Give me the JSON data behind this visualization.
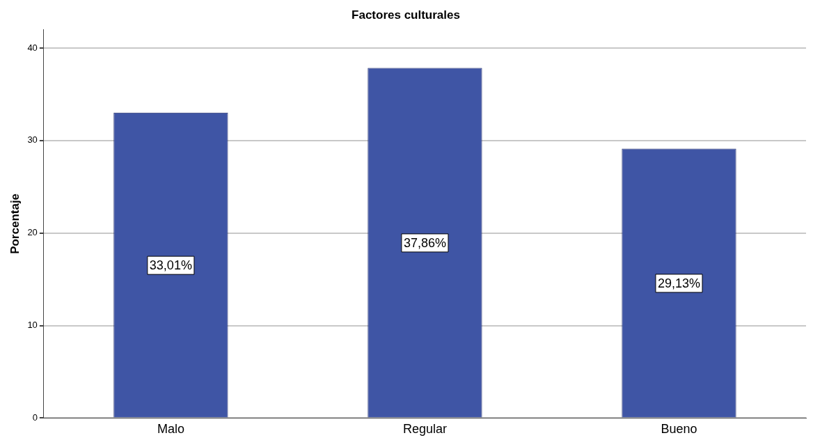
{
  "chart_data": {
    "type": "bar",
    "title": "Factores culturales",
    "ylabel": "Porcentaje",
    "categories": [
      "Malo",
      "Regular",
      "Bueno"
    ],
    "values": [
      33.01,
      37.86,
      29.13
    ],
    "value_labels": [
      "33,01%",
      "37,86%",
      "29,13%"
    ],
    "color": "#3f55a5",
    "ylim": [
      0,
      42
    ],
    "yticks": [
      0,
      10,
      20,
      30,
      40
    ],
    "grid": "y",
    "legend": false
  }
}
